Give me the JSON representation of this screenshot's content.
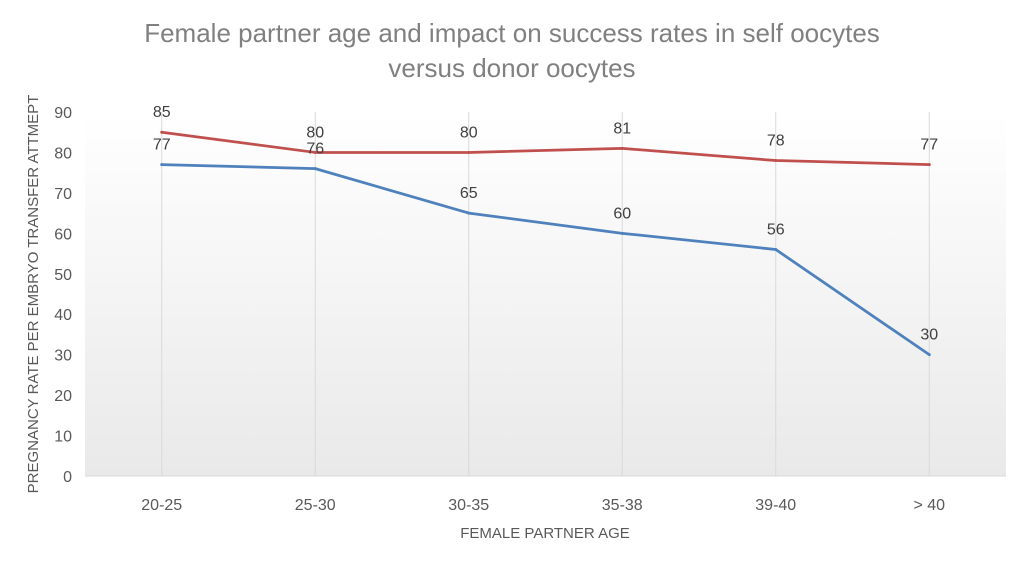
{
  "chart_data": {
    "type": "line",
    "title_lines": [
      "Female partner age and impact on success rates in self oocytes",
      "versus donor oocytes"
    ],
    "xlabel": "FEMALE PARTNER AGE",
    "ylabel": "PREGNANCY RATE PER EMBRYO TRANSFER ATTMEPT",
    "categories": [
      "20-25",
      "25-30",
      "30-35",
      "35-38",
      "39-40",
      "> 40"
    ],
    "ylim": [
      0,
      90
    ],
    "yticks": [
      0,
      10,
      20,
      30,
      40,
      50,
      60,
      70,
      80,
      90
    ],
    "grid": "vertical",
    "legend": "none",
    "series": [
      {
        "values": [
          77,
          76,
          65,
          60,
          56,
          30
        ],
        "color": "#4f81bd"
      },
      {
        "values": [
          85,
          80,
          80,
          81,
          78,
          77
        ],
        "color": "#c0504d"
      }
    ]
  }
}
